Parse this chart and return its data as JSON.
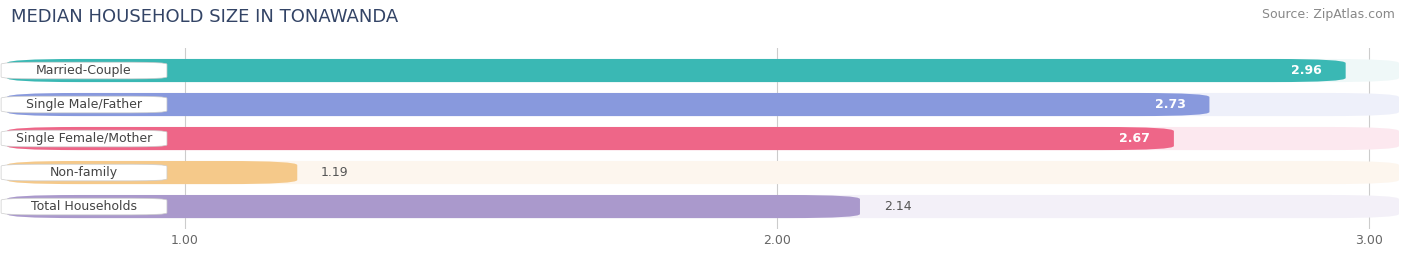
{
  "title": "MEDIAN HOUSEHOLD SIZE IN TONAWANDA",
  "source": "Source: ZipAtlas.com",
  "categories": [
    "Married-Couple",
    "Single Male/Father",
    "Single Female/Mother",
    "Non-family",
    "Total Households"
  ],
  "values": [
    2.96,
    2.73,
    2.67,
    1.19,
    2.14
  ],
  "bar_colors": [
    "#3ab8b4",
    "#8899dd",
    "#ee6688",
    "#f5c98a",
    "#aa99cc"
  ],
  "bar_bg_colors": [
    "#eff8f8",
    "#eef0fa",
    "#fce8ef",
    "#fdf6ee",
    "#f3f0f8"
  ],
  "value_inside": [
    true,
    true,
    true,
    false,
    false
  ],
  "xlim_start": 0.7,
  "xlim_end": 3.05,
  "xticks": [
    1.0,
    2.0,
    3.0
  ],
  "value_color_inside": "#ffffff",
  "value_color_outside": "#555555",
  "label_color": "#444444",
  "background_color": "#ffffff",
  "title_fontsize": 13,
  "source_fontsize": 9,
  "bar_label_fontsize": 9,
  "value_fontsize": 9,
  "bar_height": 0.68
}
